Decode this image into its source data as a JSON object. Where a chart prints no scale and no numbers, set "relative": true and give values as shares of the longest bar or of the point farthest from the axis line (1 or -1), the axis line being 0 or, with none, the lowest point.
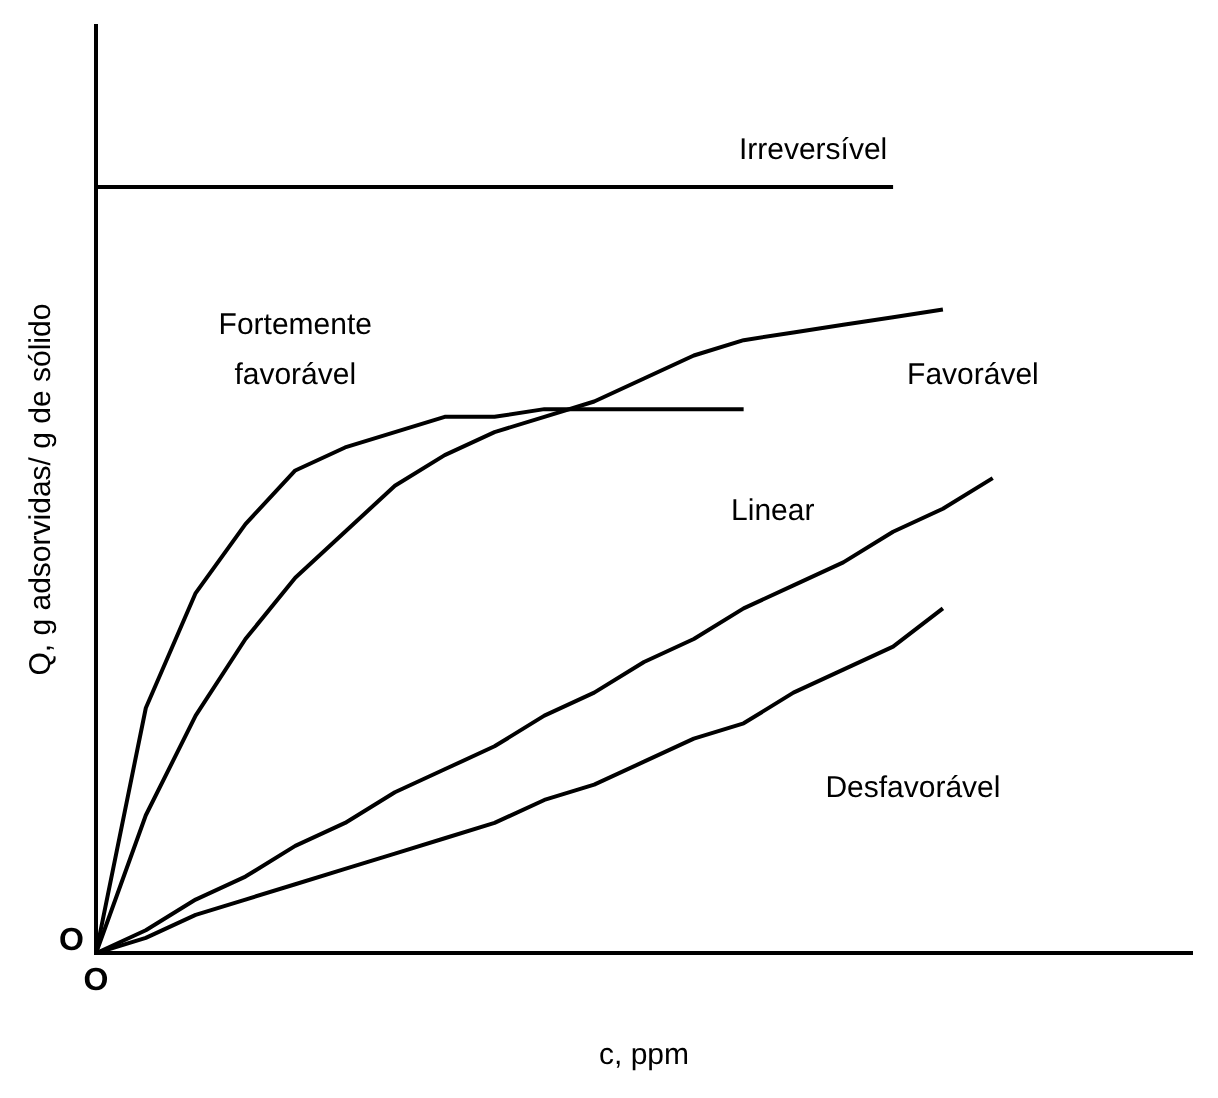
{
  "chart_data": {
    "type": "line",
    "relative": true,
    "xlabel": "c, ppm",
    "ylabel": "Q, g adsorvidas/ g de sólido",
    "annotations": [
      "O",
      "O"
    ],
    "grid": false,
    "legend": false,
    "marker": "none",
    "line_style": "solid",
    "categories": [
      null,
      null,
      null,
      null,
      null,
      null,
      null,
      null,
      null,
      null,
      null,
      null,
      null,
      null,
      null,
      null,
      null,
      null,
      null,
      null,
      null,
      null,
      null
    ],
    "series": [
      {
        "name": "Irreversível",
        "color": "#000000",
        "values": [
          1,
          1,
          1,
          1,
          1,
          1,
          1,
          1,
          1,
          1,
          1,
          1,
          1,
          1,
          1,
          1,
          1,
          null,
          null,
          null,
          null,
          null,
          null
        ]
      },
      {
        "name": "Fortemente favorável",
        "color": "#000000",
        "values": [
          0,
          0.32,
          0.47,
          0.56,
          0.63,
          0.66,
          0.68,
          0.7,
          0.7,
          0.71,
          0.71,
          0.71,
          0.71,
          0.71,
          null,
          null,
          null,
          null,
          null,
          null,
          null,
          null,
          null
        ]
      },
      {
        "name": "Favorável",
        "color": "#000000",
        "values": [
          0,
          0.18,
          0.31,
          0.41,
          0.49,
          0.55,
          0.61,
          0.65,
          0.68,
          0.7,
          0.72,
          0.75,
          0.78,
          0.8,
          0.81,
          0.82,
          0.83,
          0.84,
          null,
          null,
          null,
          null,
          null
        ]
      },
      {
        "name": "Linear",
        "color": "#000000",
        "values": [
          0,
          0.03,
          0.07,
          0.1,
          0.14,
          0.17,
          0.21,
          0.24,
          0.27,
          0.31,
          0.34,
          0.38,
          0.41,
          0.45,
          0.48,
          0.51,
          0.55,
          0.58,
          0.62,
          null,
          null,
          null,
          null
        ]
      },
      {
        "name": "Desfavorável",
        "color": "#000000",
        "values": [
          0,
          0.02,
          0.05,
          0.07,
          0.09,
          0.11,
          0.13,
          0.15,
          0.17,
          0.2,
          0.22,
          0.25,
          0.28,
          0.3,
          0.34,
          0.37,
          0.4,
          0.45,
          null,
          null,
          null,
          null,
          null
        ]
      }
    ]
  }
}
